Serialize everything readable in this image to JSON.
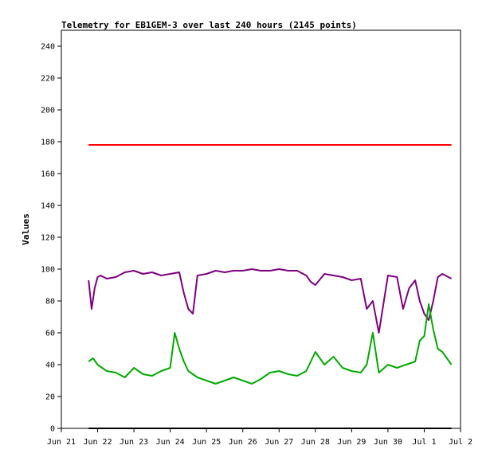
{
  "chart_data": {
    "type": "line",
    "title": "Telemetry for EB1GEM-3 over last 240 hours (2145 points)",
    "xlabel": "",
    "ylabel": "Values",
    "xlim": [
      "2016-06-21T00:00",
      "2016-07-02T00:00"
    ],
    "ylim": [
      0,
      250
    ],
    "x_tick_labels": [
      "Jun 21",
      "Jun 22",
      "Jun 23",
      "Jun 24",
      "Jun 25",
      "Jun 26",
      "Jun 27",
      "Jun 28",
      "Jun 29",
      "Jun 30",
      "Jul 1",
      "Jul 2"
    ],
    "y_ticks": [
      0,
      20,
      40,
      60,
      80,
      100,
      120,
      140,
      160,
      180,
      200,
      220,
      240
    ],
    "grid": false,
    "legend": "none",
    "series": [
      {
        "color": "#ff0000",
        "x": [
          "2016-06-21T18:00",
          "2016-07-01T18:00"
        ],
        "y": [
          178,
          178
        ]
      },
      {
        "color": "#7f007f",
        "x": [
          "2016-06-21T18:00",
          "2016-06-21T20:00",
          "2016-06-21T22:00",
          "2016-06-22T00:00",
          "2016-06-22T02:00",
          "2016-06-22T06:00",
          "2016-06-22T12:00",
          "2016-06-22T18:00",
          "2016-06-23T00:00",
          "2016-06-23T06:00",
          "2016-06-23T12:00",
          "2016-06-23T18:00",
          "2016-06-24T00:00",
          "2016-06-24T06:00",
          "2016-06-24T09:00",
          "2016-06-24T12:00",
          "2016-06-24T15:00",
          "2016-06-24T18:00",
          "2016-06-25T00:00",
          "2016-06-25T06:00",
          "2016-06-25T12:00",
          "2016-06-25T18:00",
          "2016-06-26T00:00",
          "2016-06-26T06:00",
          "2016-06-26T12:00",
          "2016-06-26T18:00",
          "2016-06-27T00:00",
          "2016-06-27T06:00",
          "2016-06-27T12:00",
          "2016-06-27T18:00",
          "2016-06-27T21:00",
          "2016-06-28T00:00",
          "2016-06-28T06:00",
          "2016-06-28T12:00",
          "2016-06-28T18:00",
          "2016-06-29T00:00",
          "2016-06-29T06:00",
          "2016-06-29T10:00",
          "2016-06-29T14:00",
          "2016-06-29T18:00",
          "2016-06-30T00:00",
          "2016-06-30T06:00",
          "2016-06-30T10:00",
          "2016-06-30T14:00",
          "2016-06-30T18:00",
          "2016-06-30T21:00",
          "2016-07-01T00:00",
          "2016-07-01T03:00",
          "2016-07-01T06:00",
          "2016-07-01T09:00",
          "2016-07-01T12:00",
          "2016-07-01T18:00"
        ],
        "y": [
          93,
          75,
          88,
          95,
          96,
          94,
          95,
          98,
          99,
          97,
          98,
          96,
          97,
          98,
          85,
          75,
          72,
          96,
          97,
          99,
          98,
          99,
          99,
          100,
          99,
          99,
          100,
          99,
          99,
          96,
          92,
          90,
          97,
          96,
          95,
          93,
          94,
          75,
          80,
          60,
          96,
          95,
          75,
          88,
          93,
          80,
          72,
          68,
          80,
          95,
          97,
          94
        ]
      },
      {
        "color": "#00aa00",
        "x": [
          "2016-06-21T18:00",
          "2016-06-21T21:00",
          "2016-06-22T00:00",
          "2016-06-22T03:00",
          "2016-06-22T06:00",
          "2016-06-22T12:00",
          "2016-06-22T18:00",
          "2016-06-23T00:00",
          "2016-06-23T06:00",
          "2016-06-23T12:00",
          "2016-06-23T18:00",
          "2016-06-24T00:00",
          "2016-06-24T03:00",
          "2016-06-24T06:00",
          "2016-06-24T09:00",
          "2016-06-24T12:00",
          "2016-06-24T18:00",
          "2016-06-25T00:00",
          "2016-06-25T06:00",
          "2016-06-25T12:00",
          "2016-06-25T18:00",
          "2016-06-26T00:00",
          "2016-06-26T06:00",
          "2016-06-26T12:00",
          "2016-06-26T18:00",
          "2016-06-27T00:00",
          "2016-06-27T06:00",
          "2016-06-27T12:00",
          "2016-06-27T18:00",
          "2016-06-28T00:00",
          "2016-06-28T06:00",
          "2016-06-28T12:00",
          "2016-06-28T18:00",
          "2016-06-29T00:00",
          "2016-06-29T06:00",
          "2016-06-29T10:00",
          "2016-06-29T14:00",
          "2016-06-29T18:00",
          "2016-06-30T00:00",
          "2016-06-30T06:00",
          "2016-06-30T12:00",
          "2016-06-30T18:00",
          "2016-06-30T21:00",
          "2016-07-01T00:00",
          "2016-07-01T03:00",
          "2016-07-01T06:00",
          "2016-07-01T09:00",
          "2016-07-01T12:00",
          "2016-07-01T18:00"
        ],
        "y": [
          42,
          44,
          40,
          38,
          36,
          35,
          32,
          38,
          34,
          33,
          36,
          38,
          60,
          50,
          42,
          36,
          32,
          30,
          28,
          30,
          32,
          30,
          28,
          31,
          35,
          36,
          34,
          33,
          36,
          48,
          40,
          45,
          38,
          36,
          35,
          40,
          60,
          35,
          40,
          38,
          40,
          42,
          55,
          58,
          78,
          62,
          50,
          48,
          40
        ]
      },
      {
        "color": "#000000",
        "x": [
          "2016-06-21T18:00",
          "2016-07-01T18:00"
        ],
        "y": [
          0,
          0
        ]
      }
    ]
  }
}
